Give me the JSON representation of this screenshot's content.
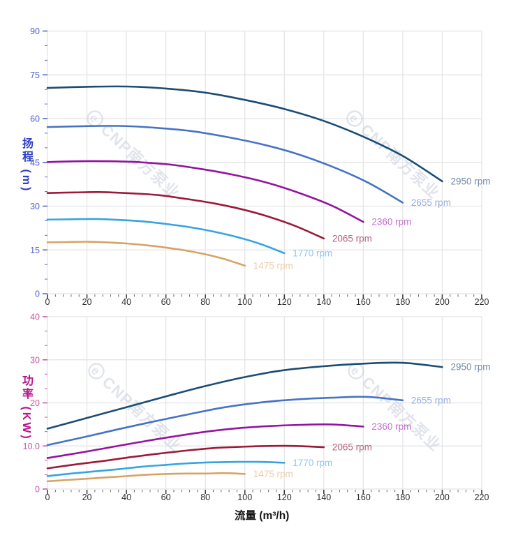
{
  "watermark": {
    "logo_char": "e",
    "text": "CNP南方泵业",
    "color": "#c5cbdc",
    "opacity": 0.5
  },
  "flow_axis_title": "流量 (m³/h)",
  "chart_data": [
    {
      "id": "head",
      "type": "line",
      "title": "",
      "xlabel": "流量 (m³/h)",
      "ylabel": "扬程 (m)",
      "xlim": [
        0,
        220
      ],
      "ylim": [
        0,
        90
      ],
      "x_major_ticks": [
        0,
        20,
        40,
        60,
        80,
        100,
        120,
        140,
        160,
        180,
        200,
        220
      ],
      "x_tick_labels": [
        "0",
        "20",
        "40",
        "60",
        "80",
        "100",
        "120",
        "140",
        "160",
        "180",
        "200",
        "220"
      ],
      "x_minor_divisions": 5,
      "y_major_ticks": [
        0,
        15,
        30,
        45,
        60,
        75,
        90
      ],
      "y_tick_labels": [
        "0",
        "15",
        "30",
        "45",
        "60",
        "75",
        "90"
      ],
      "y_minor_divisions": 3,
      "grid": true,
      "legend_position": "curve-end",
      "colors": {
        "axis_title": "#2f3fc4",
        "tick_label": "#4f5fd2",
        "tick": "#5a68d0",
        "grid": "#e3e3e6",
        "x_tick_label": "#2e2e2e",
        "x_tick": "#3c3c3c",
        "x_minor_tick": "#6a6a6a"
      },
      "series": [
        {
          "name": "2950 rpm",
          "color": "#1b4d74",
          "label_color": "#7189a6",
          "x": [
            0,
            20,
            40,
            60,
            80,
            100,
            120,
            140,
            160,
            180,
            200
          ],
          "y": [
            70.5,
            70.9,
            71.0,
            70.3,
            68.9,
            66.4,
            63.3,
            59.2,
            53.8,
            47.2,
            38.5
          ]
        },
        {
          "name": "2655 rpm",
          "color": "#4673c4",
          "label_color": "#93aedd",
          "x": [
            0,
            18,
            36,
            54,
            72,
            90,
            108,
            126,
            144,
            162,
            180
          ],
          "y": [
            57.1,
            57.4,
            57.5,
            56.9,
            55.8,
            53.8,
            51.3,
            48.0,
            43.6,
            38.2,
            31.2
          ]
        },
        {
          "name": "2360 rpm",
          "color": "#9414a0",
          "label_color": "#c36ecd",
          "x": [
            0,
            16,
            32,
            48,
            64,
            80,
            96,
            112,
            128,
            144,
            160
          ],
          "y": [
            45.1,
            45.4,
            45.4,
            45.0,
            44.1,
            42.5,
            40.5,
            37.9,
            34.4,
            30.2,
            24.6
          ]
        },
        {
          "name": "2065 rpm",
          "color": "#9c1a38",
          "label_color": "#b4627f",
          "x": [
            0,
            14,
            28,
            42,
            56,
            70,
            84,
            98,
            112,
            126,
            140
          ],
          "y": [
            34.5,
            34.7,
            34.8,
            34.4,
            33.8,
            32.5,
            31.0,
            29.0,
            26.4,
            23.1,
            18.9
          ]
        },
        {
          "name": "1770 rpm",
          "color": "#36a3e2",
          "label_color": "#8ec9f0",
          "x": [
            0,
            12,
            24,
            36,
            48,
            60,
            72,
            84,
            96,
            108,
            120
          ],
          "y": [
            25.4,
            25.5,
            25.6,
            25.3,
            24.8,
            23.9,
            22.8,
            21.3,
            19.4,
            17.0,
            13.9
          ]
        },
        {
          "name": "1475 rpm",
          "color": "#d7a365",
          "label_color": "#ecccaa",
          "x": [
            0,
            10,
            20,
            30,
            40,
            50,
            60,
            70,
            80,
            90,
            100
          ],
          "y": [
            17.6,
            17.7,
            17.8,
            17.6,
            17.2,
            16.6,
            15.8,
            14.8,
            13.5,
            11.8,
            9.6
          ]
        }
      ]
    },
    {
      "id": "power",
      "type": "line",
      "title": "",
      "xlabel": "流量 (m³/h)",
      "ylabel": "功率 (KW)",
      "xlim": [
        0,
        220
      ],
      "ylim": [
        0,
        40
      ],
      "x_major_ticks": [
        0,
        20,
        40,
        60,
        80,
        100,
        120,
        140,
        160,
        180,
        200,
        220
      ],
      "x_tick_labels": [
        "0",
        "20",
        "40",
        "60",
        "80",
        "100",
        "120",
        "140",
        "160",
        "180",
        "200",
        "220"
      ],
      "x_minor_divisions": 5,
      "y_major_ticks": [
        0,
        10,
        20,
        30,
        40
      ],
      "y_tick_labels": [
        "0",
        "10.0",
        "20",
        "30",
        "40"
      ],
      "y_minor_divisions": 3,
      "grid": true,
      "legend_position": "curve-end",
      "colors": {
        "axis_title": "#b5158b",
        "tick_label": "#c558a8",
        "tick": "#c558a8",
        "grid": "#e3e3e6",
        "x_tick_label": "#2e2e2e",
        "x_tick": "#3c3c3c",
        "x_minor_tick": "#6a6a6a"
      },
      "series": [
        {
          "name": "2950 rpm",
          "color": "#1b4d74",
          "label_color": "#7189a6",
          "x": [
            0,
            20,
            40,
            60,
            80,
            100,
            120,
            140,
            160,
            180,
            200
          ],
          "y": [
            14.0,
            16.5,
            19.0,
            21.5,
            23.9,
            26.0,
            27.6,
            28.5,
            29.1,
            29.3,
            28.3
          ]
        },
        {
          "name": "2655 rpm",
          "color": "#4673c4",
          "label_color": "#93aedd",
          "x": [
            0,
            18,
            36,
            54,
            72,
            90,
            108,
            126,
            144,
            162,
            180
          ],
          "y": [
            10.2,
            12.0,
            13.9,
            15.7,
            17.4,
            19.0,
            20.1,
            20.8,
            21.2,
            21.4,
            20.6
          ]
        },
        {
          "name": "2360 rpm",
          "color": "#9414a0",
          "label_color": "#c36ecd",
          "x": [
            0,
            16,
            32,
            48,
            64,
            80,
            96,
            112,
            128,
            144,
            160
          ],
          "y": [
            7.2,
            8.4,
            9.7,
            11.0,
            12.2,
            13.3,
            14.1,
            14.6,
            14.9,
            15.0,
            14.5
          ]
        },
        {
          "name": "2065 rpm",
          "color": "#9c1a38",
          "label_color": "#b4627f",
          "x": [
            0,
            14,
            28,
            42,
            56,
            70,
            84,
            98,
            112,
            126,
            140
          ],
          "y": [
            4.8,
            5.7,
            6.5,
            7.4,
            8.2,
            8.9,
            9.5,
            9.8,
            10.0,
            10.0,
            9.7
          ]
        },
        {
          "name": "1770 rpm",
          "color": "#36a3e2",
          "label_color": "#8ec9f0",
          "x": [
            0,
            12,
            24,
            36,
            48,
            60,
            72,
            84,
            96,
            108,
            120
          ],
          "y": [
            3.0,
            3.6,
            4.1,
            4.6,
            5.2,
            5.6,
            6.0,
            6.2,
            6.3,
            6.3,
            6.1
          ]
        },
        {
          "name": "1475 rpm",
          "color": "#d7a365",
          "label_color": "#ecccaa",
          "x": [
            0,
            10,
            20,
            30,
            40,
            50,
            60,
            70,
            80,
            90,
            100
          ],
          "y": [
            1.8,
            2.1,
            2.4,
            2.7,
            3.0,
            3.3,
            3.5,
            3.6,
            3.6,
            3.7,
            3.5
          ]
        }
      ]
    }
  ]
}
